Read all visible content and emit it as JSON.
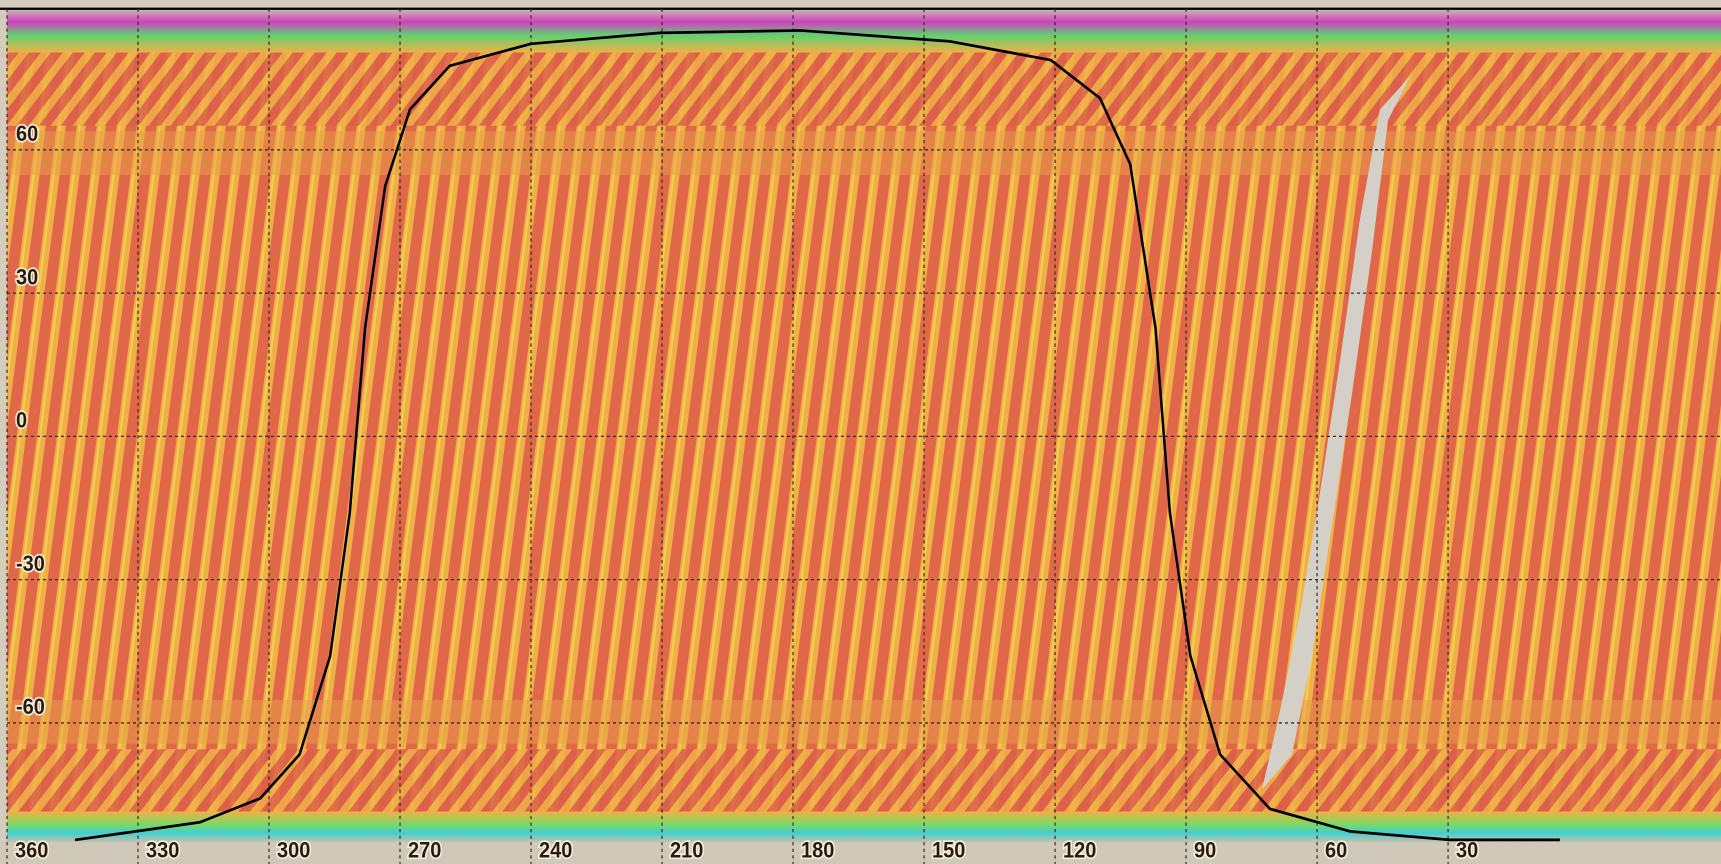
{
  "chart_data": {
    "type": "line",
    "xlim": [
      360,
      -32.5
    ],
    "ylim": [
      -90,
      90
    ],
    "xticks": [
      360,
      330,
      300,
      270,
      240,
      210,
      180,
      150,
      120,
      90,
      60,
      30
    ],
    "yticks": [
      60,
      30,
      0,
      -30,
      -60
    ],
    "grid": true,
    "x": [
      344.4,
      315.8,
      302,
      293,
      286,
      281.5,
      278,
      273.4,
      267.7,
      258.6,
      240,
      210.5,
      178.4,
      144,
      121,
      109.7,
      102.8,
      97,
      93.7,
      89,
      82.2,
      70.8,
      52.5,
      29.6,
      4.4
    ],
    "series": [
      {
        "color": "#000000",
        "values": [
          -84.5,
          -80.8,
          -75.8,
          -66.6,
          -46,
          -16,
          22.7,
          52.4,
          68.5,
          77.6,
          82.2,
          84.5,
          85,
          82.7,
          78.8,
          70.8,
          57,
          22.7,
          -16,
          -46,
          -66.6,
          -78,
          -82.7,
          -84.5,
          -84.5
        ]
      }
    ]
  }
}
